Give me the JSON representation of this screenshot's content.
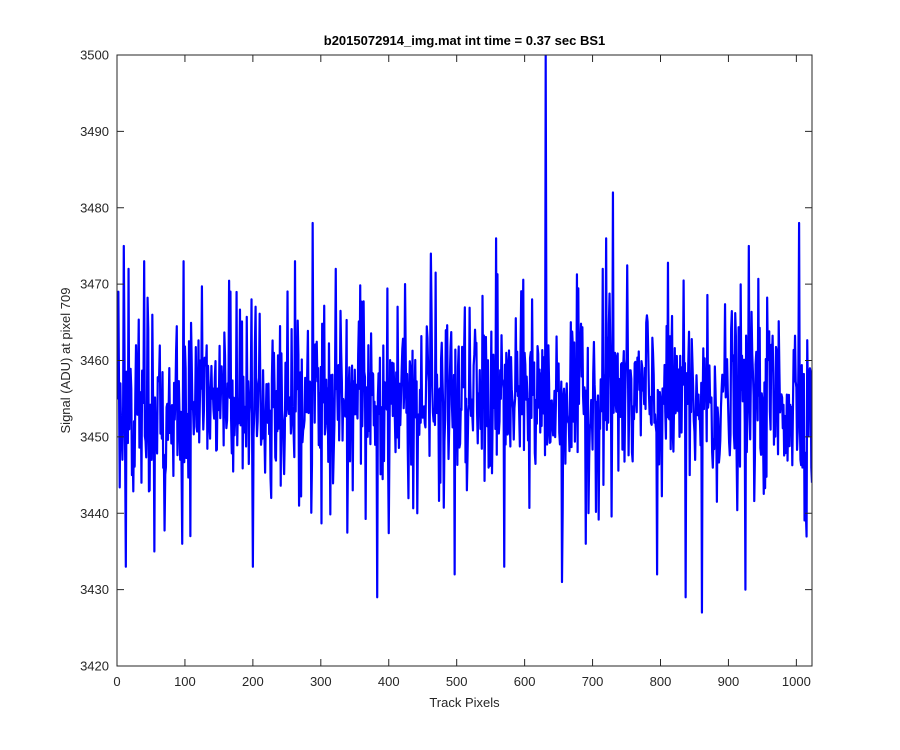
{
  "chart_data": {
    "type": "line",
    "title": "b2015072914_img.mat int time = 0.37 sec   BS1",
    "xlabel": "Track Pixels",
    "ylabel": "Signal (ADU) at pixel 709",
    "xlim": [
      0,
      1023
    ],
    "ylim": [
      3420,
      3500
    ],
    "x_ticks": [
      0,
      100,
      200,
      300,
      400,
      500,
      600,
      700,
      800,
      900,
      1000
    ],
    "y_ticks": [
      3420,
      3430,
      3440,
      3450,
      3460,
      3470,
      3480,
      3490,
      3500
    ],
    "grid": false,
    "series": [
      {
        "color": "#0000ff",
        "x_start": 0,
        "x_step": 1,
        "mean": 3455,
        "noise_std": 6,
        "seed": 709,
        "clip": [
          3425,
          3478
        ],
        "points": [
          [
            0,
            3455
          ],
          [
            2,
            3469
          ],
          [
            5,
            3457
          ],
          [
            8,
            3447
          ],
          [
            10,
            3475
          ],
          [
            13,
            3433
          ],
          [
            17,
            3472
          ],
          [
            22,
            3445
          ],
          [
            28,
            3462
          ],
          [
            36,
            3444
          ],
          [
            40,
            3473
          ],
          [
            48,
            3443
          ],
          [
            52,
            3466
          ],
          [
            55,
            3435
          ],
          [
            72,
            3446
          ],
          [
            96,
            3436
          ],
          [
            98,
            3473
          ],
          [
            108,
            3437
          ],
          [
            198,
            3468
          ],
          [
            200,
            3433
          ],
          [
            227,
            3442
          ],
          [
            232,
            3456
          ],
          [
            262,
            3473
          ],
          [
            268,
            3441
          ],
          [
            288,
            3478
          ],
          [
            296,
            3459
          ],
          [
            322,
            3472
          ],
          [
            370,
            3462
          ],
          [
            383,
            3429
          ],
          [
            386,
            3453
          ],
          [
            424,
            3470
          ],
          [
            442,
            3440
          ],
          [
            452,
            3454
          ],
          [
            462,
            3474
          ],
          [
            476,
            3444
          ],
          [
            490,
            3458
          ],
          [
            497,
            3432
          ],
          [
            514,
            3455
          ],
          [
            558,
            3476
          ],
          [
            563,
            3452
          ],
          [
            570,
            3433
          ],
          [
            586,
            3455
          ],
          [
            600,
            3461
          ],
          [
            611,
            3468
          ],
          [
            631,
            3500
          ],
          [
            633,
            3449
          ],
          [
            648,
            3456
          ],
          [
            655,
            3431
          ],
          [
            662,
            3457
          ],
          [
            690,
            3436
          ],
          [
            715,
            3472
          ],
          [
            720,
            3476
          ],
          [
            722,
            3463
          ],
          [
            730,
            3482
          ],
          [
            733,
            3461
          ],
          [
            760,
            3454
          ],
          [
            795,
            3432
          ],
          [
            800,
            3455
          ],
          [
            837,
            3429
          ],
          [
            843,
            3445
          ],
          [
            861,
            3427
          ],
          [
            867,
            3458
          ],
          [
            925,
            3430
          ],
          [
            927,
            3448
          ],
          [
            930,
            3475
          ],
          [
            935,
            3461
          ],
          [
            1004,
            3478
          ],
          [
            1014,
            3440
          ],
          [
            1023,
            3444
          ]
        ]
      }
    ]
  }
}
